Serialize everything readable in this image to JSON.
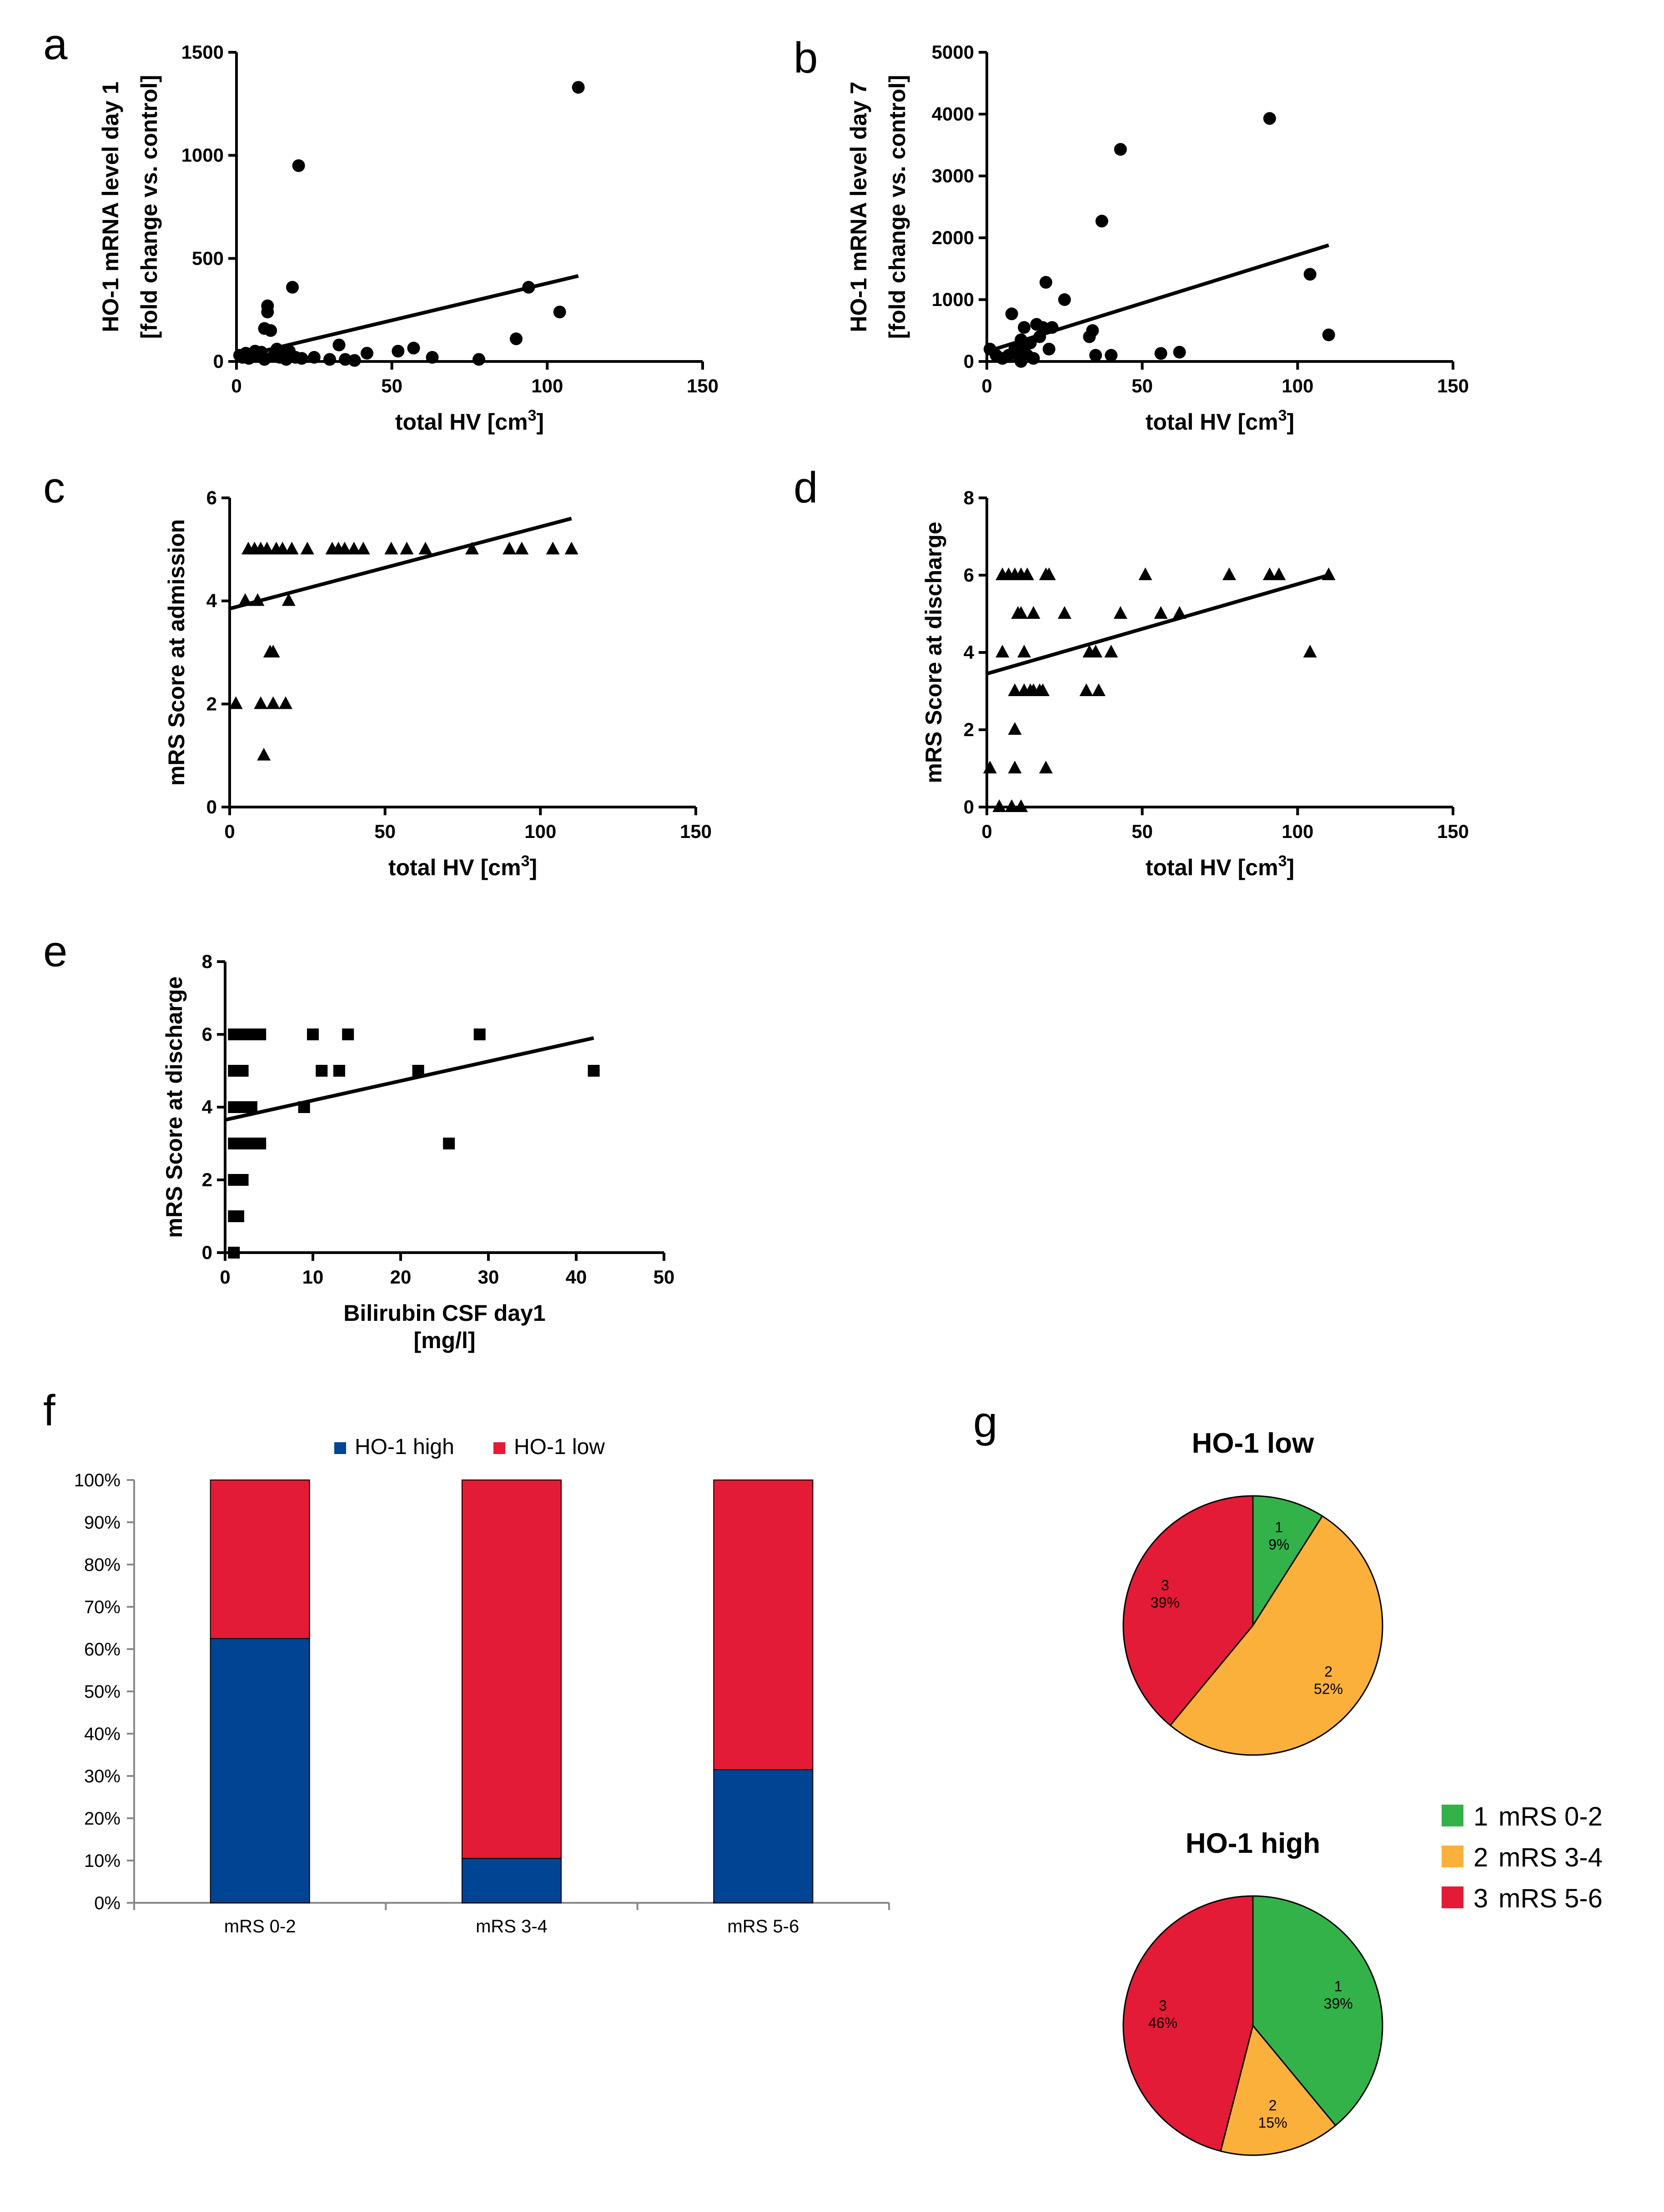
{
  "figure": {
    "panel_letters": [
      "a",
      "b",
      "c",
      "d",
      "e",
      "f",
      "g"
    ]
  },
  "colors": {
    "blue": "#004494",
    "red": "#e31b36",
    "green": "#33b24a",
    "orange": "#fbb03b",
    "axis": "#000000",
    "grid_gray": "#888888"
  },
  "chart_data": [
    {
      "id": "a",
      "type": "scatter",
      "marker": "circle",
      "xlabel": "total HV [cm3]",
      "xlabel_main": "total HV [cm",
      "xlabel_sup": "3",
      "xlabel_end": "]",
      "ylabel": [
        "HO-1 mRNA level day 1",
        "[fold change vs. control]"
      ],
      "xlim": [
        0,
        150
      ],
      "ylim": [
        0,
        1500
      ],
      "xticks": [
        0,
        50,
        100,
        150
      ],
      "yticks": [
        0,
        500,
        1000,
        1500
      ],
      "xtick_labels": [
        "0",
        "50",
        "100",
        "150"
      ],
      "ytick_labels": [
        "0",
        "500",
        "1000",
        "1500"
      ],
      "points": [
        [
          1,
          30
        ],
        [
          2,
          20
        ],
        [
          3,
          40
        ],
        [
          4,
          15
        ],
        [
          5,
          35
        ],
        [
          6,
          50
        ],
        [
          7,
          25
        ],
        [
          8,
          45
        ],
        [
          9,
          10
        ],
        [
          9,
          160
        ],
        [
          10,
          270
        ],
        [
          10,
          240
        ],
        [
          11,
          150
        ],
        [
          12,
          30
        ],
        [
          13,
          60
        ],
        [
          14,
          20
        ],
        [
          15,
          40
        ],
        [
          16,
          10
        ],
        [
          17,
          50
        ],
        [
          18,
          360
        ],
        [
          19,
          20
        ],
        [
          20,
          950
        ],
        [
          21,
          15
        ],
        [
          25,
          20
        ],
        [
          30,
          10
        ],
        [
          33,
          80
        ],
        [
          35,
          10
        ],
        [
          38,
          5
        ],
        [
          42,
          40
        ],
        [
          52,
          50
        ],
        [
          57,
          65
        ],
        [
          63,
          20
        ],
        [
          78,
          10
        ],
        [
          90,
          110
        ],
        [
          94,
          360
        ],
        [
          104,
          240
        ],
        [
          110,
          1330
        ]
      ],
      "fit": [
        [
          0,
          20
        ],
        [
          110,
          415
        ]
      ]
    },
    {
      "id": "b",
      "type": "scatter",
      "marker": "circle",
      "xlabel": "total HV [cm3]",
      "xlabel_main": "total HV [cm",
      "xlabel_sup": "3",
      "xlabel_end": "]",
      "ylabel": [
        "HO-1 mRNA level day 7",
        "[fold change vs. control]"
      ],
      "xlim": [
        0,
        150
      ],
      "ylim": [
        0,
        5000
      ],
      "xticks": [
        0,
        50,
        100,
        150
      ],
      "yticks": [
        0,
        1000,
        2000,
        3000,
        4000,
        5000
      ],
      "xtick_labels": [
        "0",
        "50",
        "100",
        "150"
      ],
      "ytick_labels": [
        "0",
        "1000",
        "2000",
        "3000",
        "4000",
        "5000"
      ],
      "points": [
        [
          1,
          200
        ],
        [
          3,
          100
        ],
        [
          5,
          50
        ],
        [
          7,
          100
        ],
        [
          8,
          770
        ],
        [
          9,
          200
        ],
        [
          10,
          100
        ],
        [
          11,
          350
        ],
        [
          11,
          0
        ],
        [
          12,
          200
        ],
        [
          12,
          550
        ],
        [
          13,
          100
        ],
        [
          14,
          300
        ],
        [
          15,
          50
        ],
        [
          16,
          600
        ],
        [
          17,
          400
        ],
        [
          18,
          550
        ],
        [
          19,
          1280
        ],
        [
          20,
          200
        ],
        [
          21,
          550
        ],
        [
          25,
          1000
        ],
        [
          33,
          400
        ],
        [
          34,
          500
        ],
        [
          35,
          100
        ],
        [
          37,
          2270
        ],
        [
          40,
          100
        ],
        [
          43,
          3430
        ],
        [
          56,
          130
        ],
        [
          62,
          150
        ],
        [
          91,
          3930
        ],
        [
          104,
          1410
        ],
        [
          110,
          430
        ]
      ],
      "fit": [
        [
          0,
          160
        ],
        [
          110,
          1880
        ]
      ]
    },
    {
      "id": "c",
      "type": "scatter",
      "marker": "triangle",
      "xlabel": "total HV [cm3]",
      "xlabel_main": "total HV [cm",
      "xlabel_sup": "3",
      "xlabel_end": "]",
      "ylabel": [
        "mRS Score at admission"
      ],
      "xlim": [
        0,
        150
      ],
      "ylim": [
        0,
        6
      ],
      "xticks": [
        0,
        50,
        100,
        150
      ],
      "yticks": [
        0,
        2,
        4,
        6
      ],
      "xtick_labels": [
        "0",
        "50",
        "100",
        "150"
      ],
      "ytick_labels": [
        "0",
        "2",
        "4",
        "6"
      ],
      "points": [
        [
          2,
          2
        ],
        [
          5,
          4
        ],
        [
          6,
          5
        ],
        [
          8,
          5
        ],
        [
          9,
          4
        ],
        [
          10,
          5
        ],
        [
          10,
          2
        ],
        [
          11,
          1
        ],
        [
          12,
          5
        ],
        [
          13,
          3
        ],
        [
          14,
          2
        ],
        [
          14,
          3
        ],
        [
          15,
          5
        ],
        [
          17,
          5
        ],
        [
          18,
          2
        ],
        [
          19,
          4
        ],
        [
          20,
          5
        ],
        [
          25,
          5
        ],
        [
          33,
          5
        ],
        [
          35,
          5
        ],
        [
          37,
          5
        ],
        [
          40,
          5
        ],
        [
          43,
          5
        ],
        [
          52,
          5
        ],
        [
          57,
          5
        ],
        [
          63,
          5
        ],
        [
          78,
          5
        ],
        [
          90,
          5
        ],
        [
          94,
          5
        ],
        [
          104,
          5
        ],
        [
          110,
          5
        ]
      ],
      "fit": [
        [
          0,
          3.85
        ],
        [
          110,
          5.6
        ]
      ]
    },
    {
      "id": "d",
      "type": "scatter",
      "marker": "triangle",
      "xlabel": "total HV [cm3]",
      "xlabel_main": "total HV [cm",
      "xlabel_sup": "3",
      "xlabel_end": "]",
      "ylabel": [
        "mRS Score at discharge"
      ],
      "xlim": [
        0,
        150
      ],
      "ylim": [
        0,
        8
      ],
      "xticks": [
        0,
        50,
        100,
        150
      ],
      "yticks": [
        0,
        2,
        4,
        6,
        8
      ],
      "xtick_labels": [
        "0",
        "50",
        "100",
        "150"
      ],
      "ytick_labels": [
        "0",
        "2",
        "4",
        "6",
        "8"
      ],
      "points": [
        [
          1,
          1
        ],
        [
          4,
          0
        ],
        [
          5,
          4
        ],
        [
          5,
          6
        ],
        [
          7,
          6
        ],
        [
          8,
          0
        ],
        [
          9,
          1
        ],
        [
          9,
          3
        ],
        [
          9,
          6
        ],
        [
          9,
          2
        ],
        [
          10,
          5
        ],
        [
          11,
          5
        ],
        [
          11,
          0
        ],
        [
          11,
          6
        ],
        [
          12,
          3
        ],
        [
          12,
          4
        ],
        [
          13,
          6
        ],
        [
          14,
          3
        ],
        [
          15,
          5
        ],
        [
          15,
          3
        ],
        [
          17,
          3
        ],
        [
          18,
          3
        ],
        [
          19,
          6
        ],
        [
          19,
          1
        ],
        [
          20,
          6
        ],
        [
          25,
          5
        ],
        [
          32,
          3
        ],
        [
          33,
          4
        ],
        [
          35,
          4
        ],
        [
          36,
          3
        ],
        [
          40,
          4
        ],
        [
          43,
          5
        ],
        [
          51,
          6
        ],
        [
          56,
          5
        ],
        [
          62,
          5
        ],
        [
          78,
          6
        ],
        [
          91,
          6
        ],
        [
          94,
          6
        ],
        [
          104,
          4
        ],
        [
          110,
          6
        ]
      ],
      "fit": [
        [
          0,
          3.45
        ],
        [
          110,
          6.0
        ]
      ]
    },
    {
      "id": "e",
      "type": "scatter",
      "marker": "square",
      "xlabel": "Bilirubin CSF day1 [mg/l]",
      "xlabel_lines": [
        "Bilirubin CSF day1",
        "[mg/l]"
      ],
      "ylabel": [
        "mRS Score at discharge"
      ],
      "xlim": [
        0,
        50
      ],
      "ylim": [
        0,
        8
      ],
      "xticks": [
        0,
        10,
        20,
        30,
        40,
        50
      ],
      "yticks": [
        0,
        2,
        4,
        6,
        8
      ],
      "xtick_labels": [
        "0",
        "10",
        "20",
        "30",
        "40",
        "50"
      ],
      "ytick_labels": [
        "0",
        "2",
        "4",
        "6",
        "8"
      ],
      "points": [
        [
          1,
          0
        ],
        [
          1,
          1
        ],
        [
          1,
          2
        ],
        [
          1,
          3
        ],
        [
          1,
          4
        ],
        [
          1,
          5
        ],
        [
          1,
          6
        ],
        [
          1.5,
          1
        ],
        [
          1.5,
          3
        ],
        [
          1.5,
          4
        ],
        [
          1.5,
          6
        ],
        [
          2,
          2
        ],
        [
          2,
          3
        ],
        [
          2,
          5
        ],
        [
          2,
          6
        ],
        [
          2.5,
          3
        ],
        [
          2.5,
          4
        ],
        [
          2.5,
          6
        ],
        [
          3,
          3
        ],
        [
          3,
          4
        ],
        [
          3,
          6
        ],
        [
          3.5,
          3
        ],
        [
          3.5,
          6
        ],
        [
          4,
          3
        ],
        [
          4,
          6
        ],
        [
          9,
          4
        ],
        [
          10,
          6
        ],
        [
          11,
          5
        ],
        [
          13,
          5
        ],
        [
          14,
          6
        ],
        [
          22,
          5
        ],
        [
          25.5,
          3
        ],
        [
          29,
          6
        ],
        [
          42,
          5
        ]
      ],
      "fit": [
        [
          0,
          3.65
        ],
        [
          42,
          5.9
        ]
      ]
    },
    {
      "id": "f",
      "type": "bar",
      "stacked": true,
      "categories": [
        "mRS 0-2",
        "mRS 3-4",
        "mRS 5-6"
      ],
      "series": [
        {
          "name": "HO-1 high",
          "color": "#004494",
          "values": [
            62.5,
            10.5,
            31.5
          ]
        },
        {
          "name": "HO-1 low",
          "color": "#e31b36",
          "values": [
            37.5,
            89.5,
            68.5
          ]
        }
      ],
      "ylim": [
        0,
        100
      ],
      "yticks": [
        0,
        10,
        20,
        30,
        40,
        50,
        60,
        70,
        80,
        90,
        100
      ],
      "ytick_labels": [
        "0%",
        "10%",
        "20%",
        "30%",
        "40%",
        "50%",
        "60%",
        "70%",
        "80%",
        "90%",
        "100%"
      ],
      "legend": "top"
    },
    {
      "id": "g1",
      "type": "pie",
      "title": "HO-1 low",
      "slices": [
        {
          "index": "1",
          "name": "mRS 0-2",
          "value": 9,
          "label": "9%",
          "color": "#33b24a"
        },
        {
          "index": "2",
          "name": "mRS 3-4",
          "value": 52,
          "label": "52%",
          "color": "#fbb03b"
        },
        {
          "index": "3",
          "name": "mRS 5-6",
          "value": 39,
          "label": "39%",
          "color": "#e31b36"
        }
      ]
    },
    {
      "id": "g2",
      "type": "pie",
      "title": "HO-1 high",
      "slices": [
        {
          "index": "1",
          "name": "mRS 0-2",
          "value": 39,
          "label": "39%",
          "color": "#33b24a"
        },
        {
          "index": "2",
          "name": "mRS 3-4",
          "value": 15,
          "label": "15%",
          "color": "#fbb03b"
        },
        {
          "index": "3",
          "name": "mRS 5-6",
          "value": 46,
          "label": "46%",
          "color": "#e31b36"
        }
      ]
    }
  ],
  "pie_legend": [
    {
      "index": "1",
      "label": "mRS 0-2",
      "color": "#33b24a"
    },
    {
      "index": "2",
      "label": "mRS 3-4",
      "color": "#fbb03b"
    },
    {
      "index": "3",
      "label": "mRS 5-6",
      "color": "#e31b36"
    }
  ]
}
